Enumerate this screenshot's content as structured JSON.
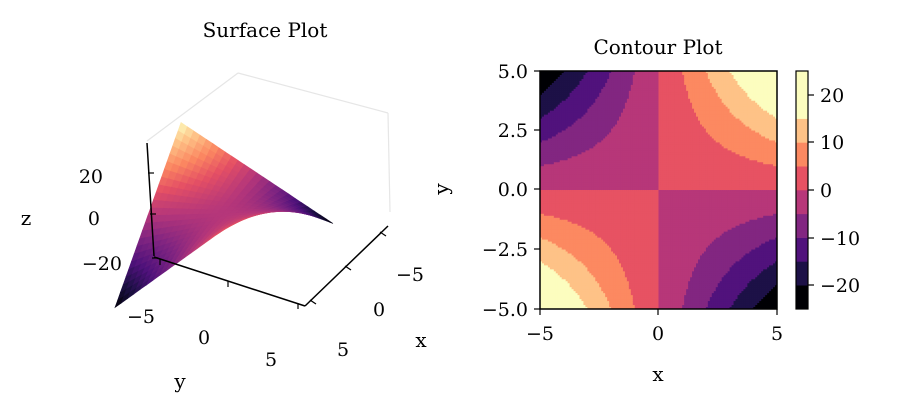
{
  "chart_data": [
    {
      "type": "surface",
      "title": "Surface Plot",
      "xlabel": "x",
      "ylabel": "y",
      "zlabel": "z",
      "function": "z = x*y",
      "x_range": [
        -5,
        5
      ],
      "y_range": [
        -5,
        5
      ],
      "z_range": [
        -25,
        25
      ],
      "x_ticks": [
        "−5",
        "0",
        "5"
      ],
      "y_ticks": [
        "−5",
        "0",
        "5"
      ],
      "z_ticks": [
        "−20",
        "0",
        "20"
      ],
      "colormap": "magma",
      "grid": false
    },
    {
      "type": "contour",
      "title": "Contour Plot",
      "xlabel": "x",
      "ylabel": "y",
      "function": "z = x*y",
      "xlim": [
        -5,
        5
      ],
      "ylim": [
        -5,
        5
      ],
      "x_ticks": [
        "−5",
        "0",
        "5"
      ],
      "y_ticks": [
        "5.0",
        "2.5",
        "0.0",
        "−2.5",
        "−5.0"
      ],
      "levels": [
        -25,
        -20,
        -15,
        -10,
        -5,
        0,
        5,
        10,
        15,
        20,
        25
      ],
      "colorbar_ticks": [
        "20",
        "10",
        "0",
        "−10",
        "−20"
      ],
      "colormap": "magma",
      "colors": [
        "#000004",
        "#1d1147",
        "#51127c",
        "#822681",
        "#b73779",
        "#e75263",
        "#fc8961",
        "#fec287",
        "#fcfdbf"
      ]
    }
  ]
}
